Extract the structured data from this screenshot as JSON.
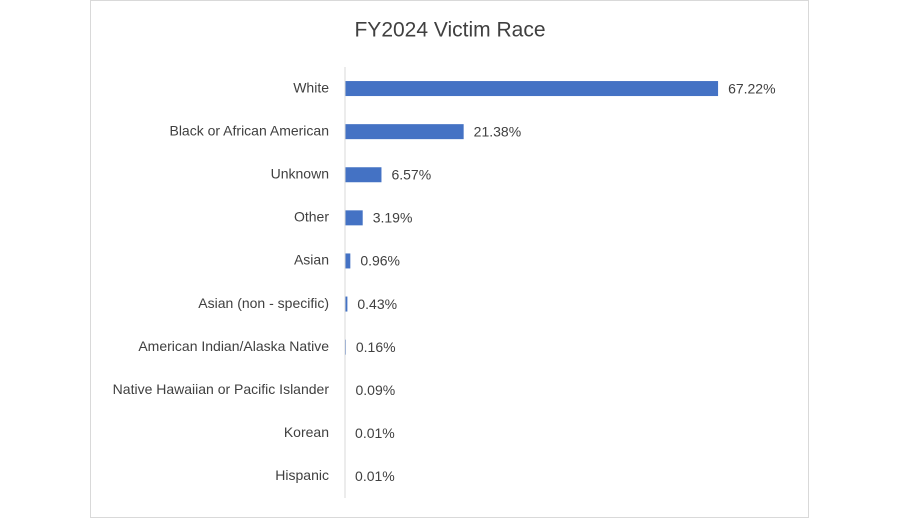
{
  "chart_data": {
    "type": "bar",
    "orientation": "horizontal",
    "title": "FY2024 Victim Race",
    "categories": [
      "White",
      "Black or African American",
      "Unknown",
      "Other",
      "Asian",
      "Asian (non - specific)",
      "American Indian/Alaska Native",
      "Native Hawaiian or Pacific Islander",
      "Korean",
      "Hispanic"
    ],
    "values": [
      67.22,
      21.38,
      6.57,
      3.19,
      0.96,
      0.43,
      0.16,
      0.09,
      0.01,
      0.01
    ],
    "value_labels": [
      "67.22%",
      "21.38%",
      "6.57%",
      "3.19%",
      "0.96%",
      "0.43%",
      "0.16%",
      "0.09%",
      "0.01%",
      "0.01%"
    ],
    "color": "#4472c4",
    "xlim": [
      0,
      80
    ]
  }
}
